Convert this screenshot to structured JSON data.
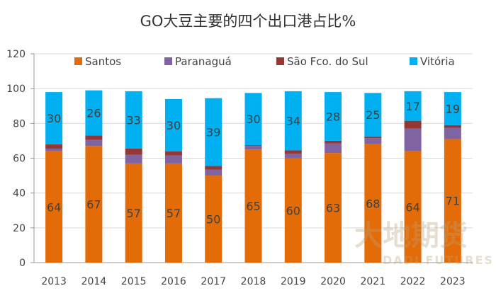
{
  "chart_data": {
    "type": "bar",
    "stacked": true,
    "title": "GO大豆主要的四个出口港占比%",
    "categories": [
      "2013",
      "2014",
      "2015",
      "2016",
      "2017",
      "2018",
      "2019",
      "2020",
      "2021",
      "2022",
      "2023"
    ],
    "series": [
      {
        "name": "Santos",
        "color": "#E36C09",
        "values": [
          64,
          67,
          57,
          57,
          50,
          65,
          60,
          63,
          68,
          64,
          71
        ],
        "labels": true
      },
      {
        "name": "Paranaguá",
        "color": "#8064A2",
        "values": [
          1.5,
          3.5,
          5,
          4.5,
          3.5,
          2,
          2.5,
          5.5,
          3.5,
          13,
          6.5
        ],
        "labels": false
      },
      {
        "name": "São Fco. do Sul",
        "color": "#953735",
        "values": [
          2.5,
          2.5,
          3.5,
          2.5,
          2,
          0.5,
          2,
          1.5,
          1,
          4.5,
          1.5
        ],
        "labels": false
      },
      {
        "name": "Vitória",
        "color": "#00B0F0",
        "values": [
          30,
          26,
          33,
          30,
          39,
          30,
          34,
          28,
          25,
          17,
          19
        ],
        "labels": true
      }
    ],
    "ylim": [
      0,
      120
    ],
    "yticks": [
      "0",
      "20",
      "40",
      "60",
      "80",
      "100",
      "120"
    ],
    "grid": true,
    "legend": "top"
  },
  "watermark": {
    "text": "大地期货",
    "sub": "DADI FUTURES"
  }
}
